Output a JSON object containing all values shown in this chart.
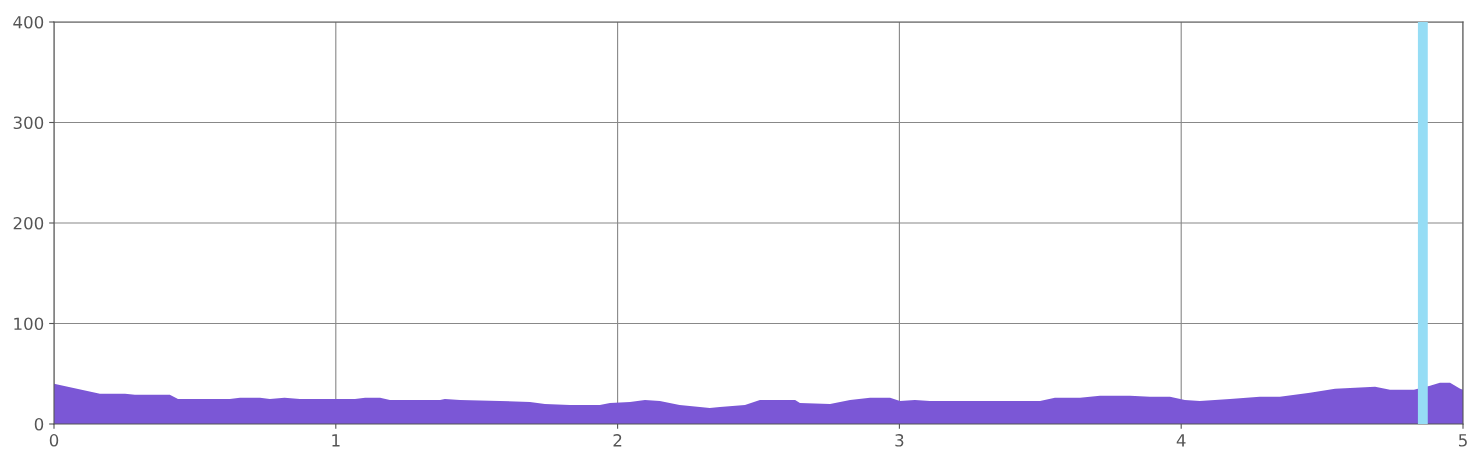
{
  "chart_data": {
    "type": "area",
    "x": [
      0,
      0.163,
      0.252,
      0.287,
      0.411,
      0.44,
      0.624,
      0.66,
      0.731,
      0.766,
      0.818,
      0.873,
      1.068,
      1.104,
      1.157,
      1.192,
      1.37,
      1.387,
      1.441,
      1.689,
      1.742,
      1.831,
      1.937,
      1.973,
      2.044,
      2.097,
      2.15,
      2.22,
      2.292,
      2.327,
      2.363,
      2.452,
      2.505,
      2.63,
      2.647,
      2.754,
      2.825,
      2.896,
      2.967,
      3.002,
      3.055,
      3.108,
      3.499,
      3.552,
      3.641,
      3.712,
      3.818,
      3.889,
      3.96,
      4.013,
      4.066,
      4.173,
      4.279,
      4.35,
      4.457,
      4.546,
      4.617,
      4.688,
      4.741,
      4.826,
      4.883,
      4.918,
      4.954,
      4.99,
      5.0
    ],
    "series": [
      {
        "color": "#7b57d6",
        "values": [
          40,
          30,
          30,
          29,
          29,
          25,
          25,
          26,
          26,
          25,
          26,
          25,
          25,
          26,
          26,
          24,
          24,
          25,
          24,
          22,
          20,
          19,
          19,
          21,
          22,
          24,
          23,
          19,
          17,
          16,
          17,
          19,
          24,
          24,
          21,
          20,
          24,
          26,
          26,
          23,
          24,
          23,
          23,
          26,
          26,
          28,
          28,
          27,
          27,
          24,
          23,
          25,
          27,
          27,
          31,
          35,
          36,
          37,
          34,
          34,
          38,
          41,
          41,
          35,
          34
        ]
      }
    ],
    "bands": [
      {
        "axis": "x",
        "from": 4.84,
        "to": 4.875,
        "color": "#96ddf5"
      }
    ],
    "xlim": [
      0,
      5
    ],
    "xticks": [
      0,
      1,
      2,
      3,
      4,
      5
    ],
    "ylim": [
      0,
      400
    ],
    "yticks": [
      0,
      100,
      200,
      300,
      400
    ],
    "grid": true
  }
}
